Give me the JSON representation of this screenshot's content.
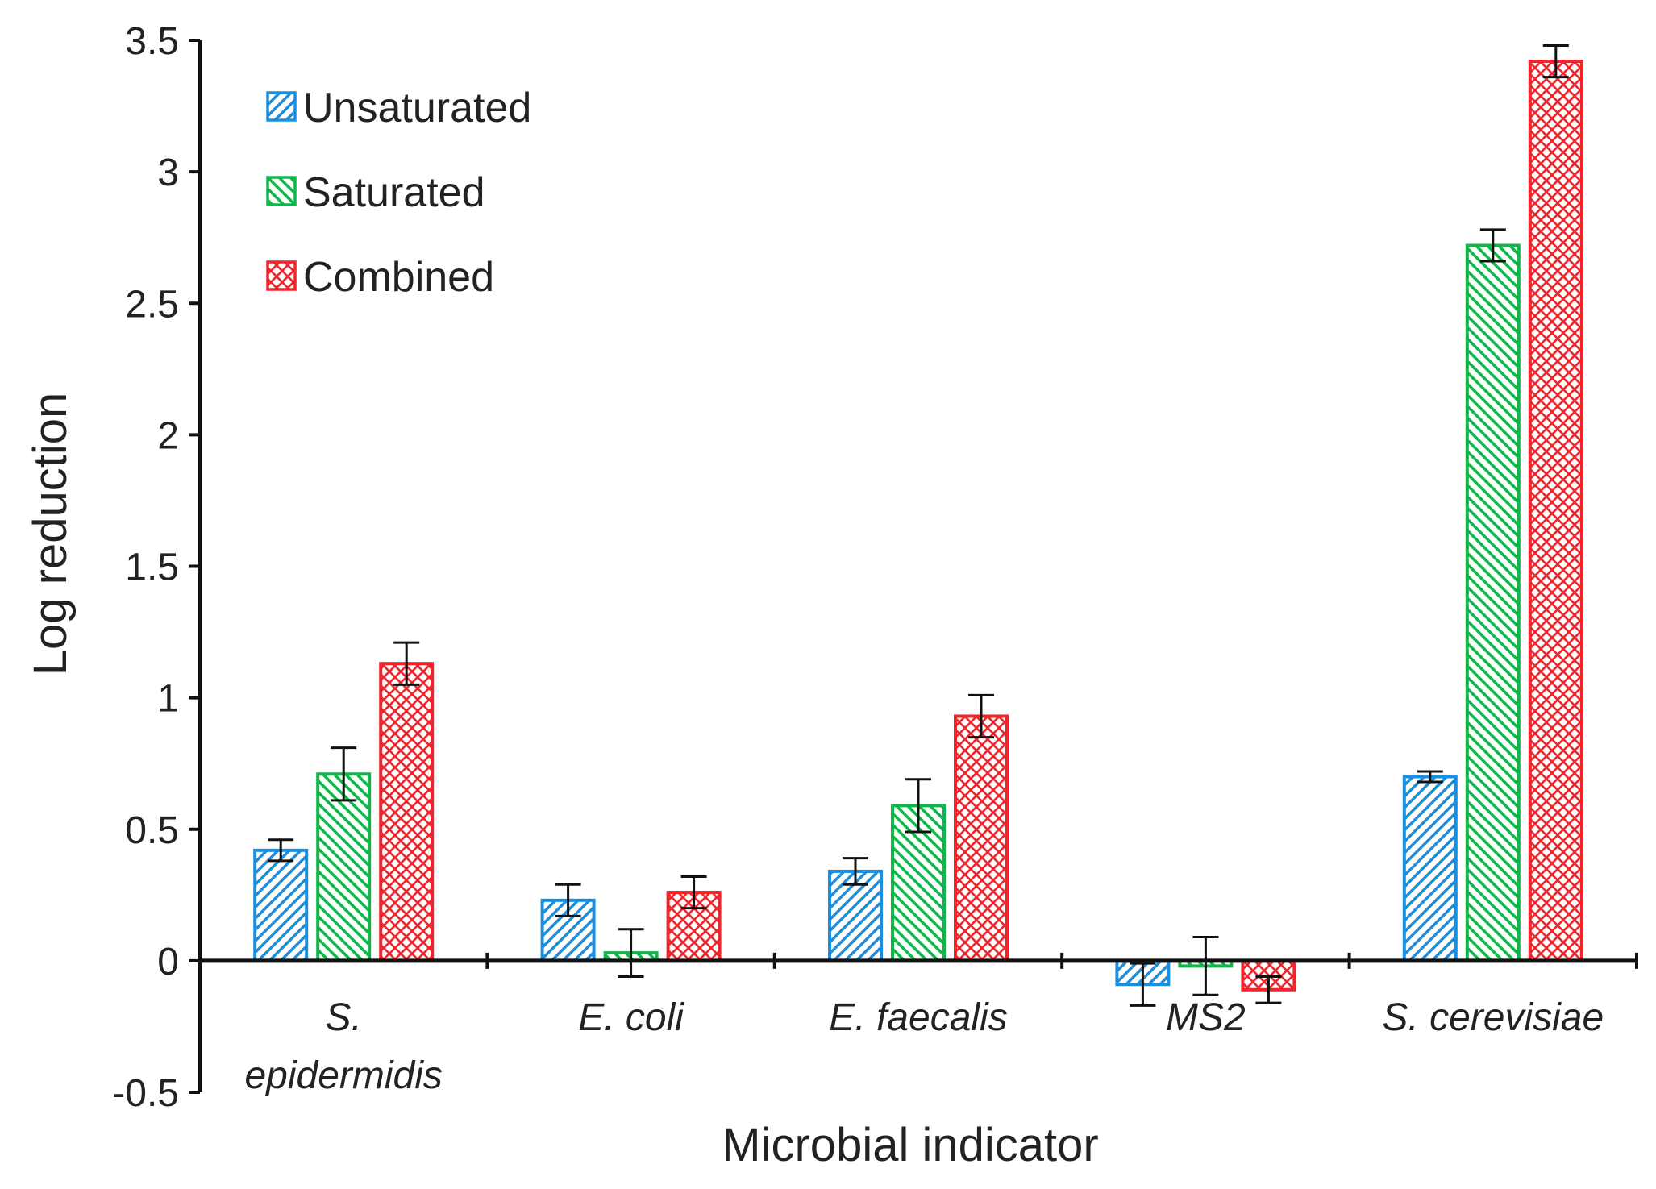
{
  "chart_data": {
    "type": "bar",
    "title": "",
    "xlabel": "Microbial indicator",
    "ylabel": "Log reduction",
    "ylim": [
      -0.5,
      3.5
    ],
    "yticks": [
      -0.5,
      0,
      0.5,
      1,
      1.5,
      2,
      2.5,
      3,
      3.5
    ],
    "ytick_labels": [
      "-0.5",
      "0",
      "0.5",
      "1",
      "1.5",
      "2",
      "2.5",
      "3",
      "3.5"
    ],
    "grid": false,
    "legend_position": "top-left",
    "categories": [
      {
        "lines": [
          "S.",
          "epidermidis"
        ]
      },
      {
        "lines": [
          "E. coli"
        ]
      },
      {
        "lines": [
          "E. faecalis"
        ]
      },
      {
        "lines": [
          "MS2"
        ]
      },
      {
        "lines": [
          "S. cerevisiae"
        ]
      }
    ],
    "series": [
      {
        "name": "Unsaturated",
        "color": "#1a8fe0",
        "pattern": "diagonal-up",
        "values": [
          0.42,
          0.23,
          0.34,
          -0.09,
          0.7
        ],
        "errors": [
          0.04,
          0.06,
          0.05,
          0.08,
          0.02
        ]
      },
      {
        "name": "Saturated",
        "color": "#12b54a",
        "pattern": "diagonal-down",
        "values": [
          0.71,
          0.03,
          0.59,
          -0.02,
          2.72
        ],
        "errors": [
          0.1,
          0.09,
          0.1,
          0.11,
          0.06
        ]
      },
      {
        "name": "Combined",
        "color": "#f0242b",
        "pattern": "crosshatch",
        "values": [
          1.13,
          0.26,
          0.93,
          -0.11,
          3.42
        ],
        "errors": [
          0.08,
          0.06,
          0.08,
          0.05,
          0.06
        ]
      }
    ]
  }
}
